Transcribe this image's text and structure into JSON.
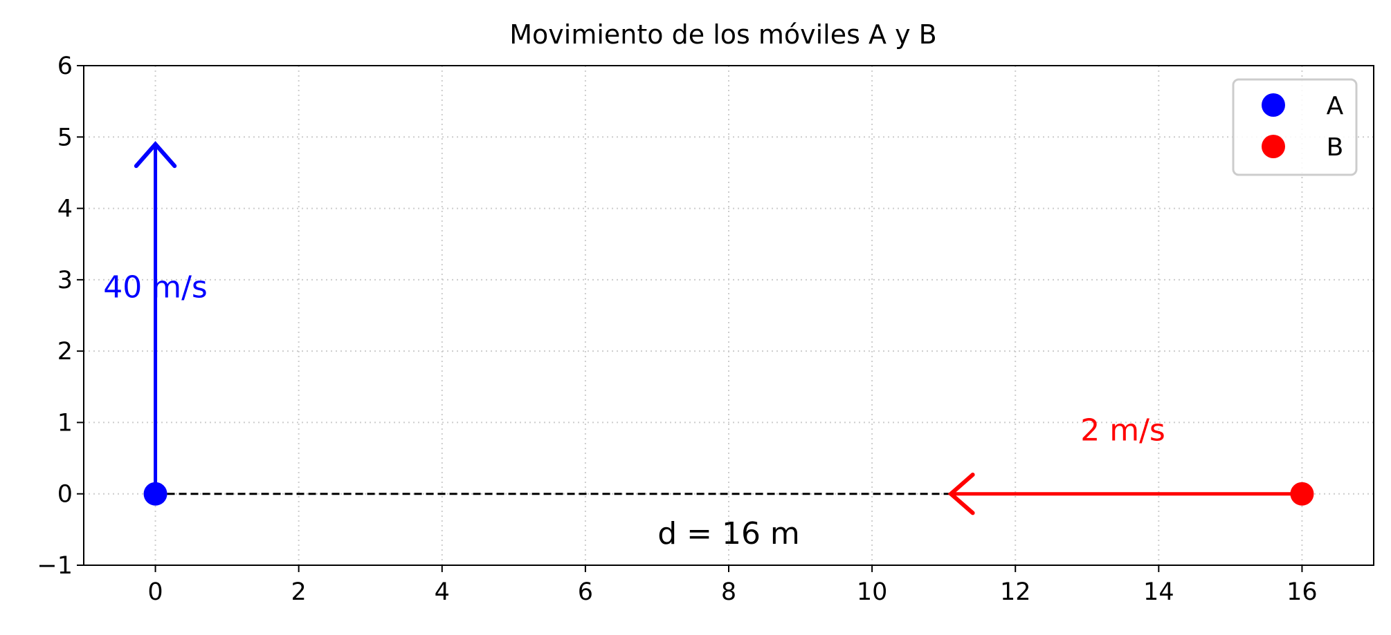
{
  "chart_data": {
    "type": "scatter",
    "title": "Movimiento de los móviles A y B",
    "xlabel": "",
    "ylabel": "",
    "xlim": [
      -1,
      17
    ],
    "ylim": [
      -1,
      6
    ],
    "xticks": [
      0,
      2,
      4,
      6,
      8,
      10,
      12,
      14,
      16
    ],
    "yticks": [
      -1,
      0,
      1,
      2,
      3,
      4,
      5,
      6
    ],
    "ytick_labels": [
      "−1",
      "0",
      "1",
      "2",
      "3",
      "4",
      "5",
      "6"
    ],
    "grid": true,
    "legend": "top-right",
    "series": [
      {
        "name": "A",
        "x": [
          0
        ],
        "y": [
          0
        ],
        "color": "#0000ff"
      },
      {
        "name": "B",
        "x": [
          16
        ],
        "y": [
          0
        ],
        "color": "#ff0000"
      }
    ],
    "arrows": [
      {
        "from": [
          0,
          0
        ],
        "to": [
          0,
          4.9
        ],
        "color": "#0000ff"
      },
      {
        "from": [
          16,
          0
        ],
        "to": [
          11.1,
          0
        ],
        "color": "#ff0000"
      }
    ],
    "distance_line": {
      "from": [
        0,
        0
      ],
      "to": [
        16,
        0
      ],
      "style": "dashed",
      "color": "#000000"
    },
    "annotations": [
      {
        "text": "40 m/s",
        "x": 0,
        "y": 2.75,
        "color": "#0000ff"
      },
      {
        "text": "2 m/s",
        "x": 13.5,
        "y": 0.75,
        "color": "#ff0000"
      },
      {
        "text": "d = 16 m",
        "x": 8,
        "y": -0.7,
        "color": "#000000"
      }
    ]
  }
}
